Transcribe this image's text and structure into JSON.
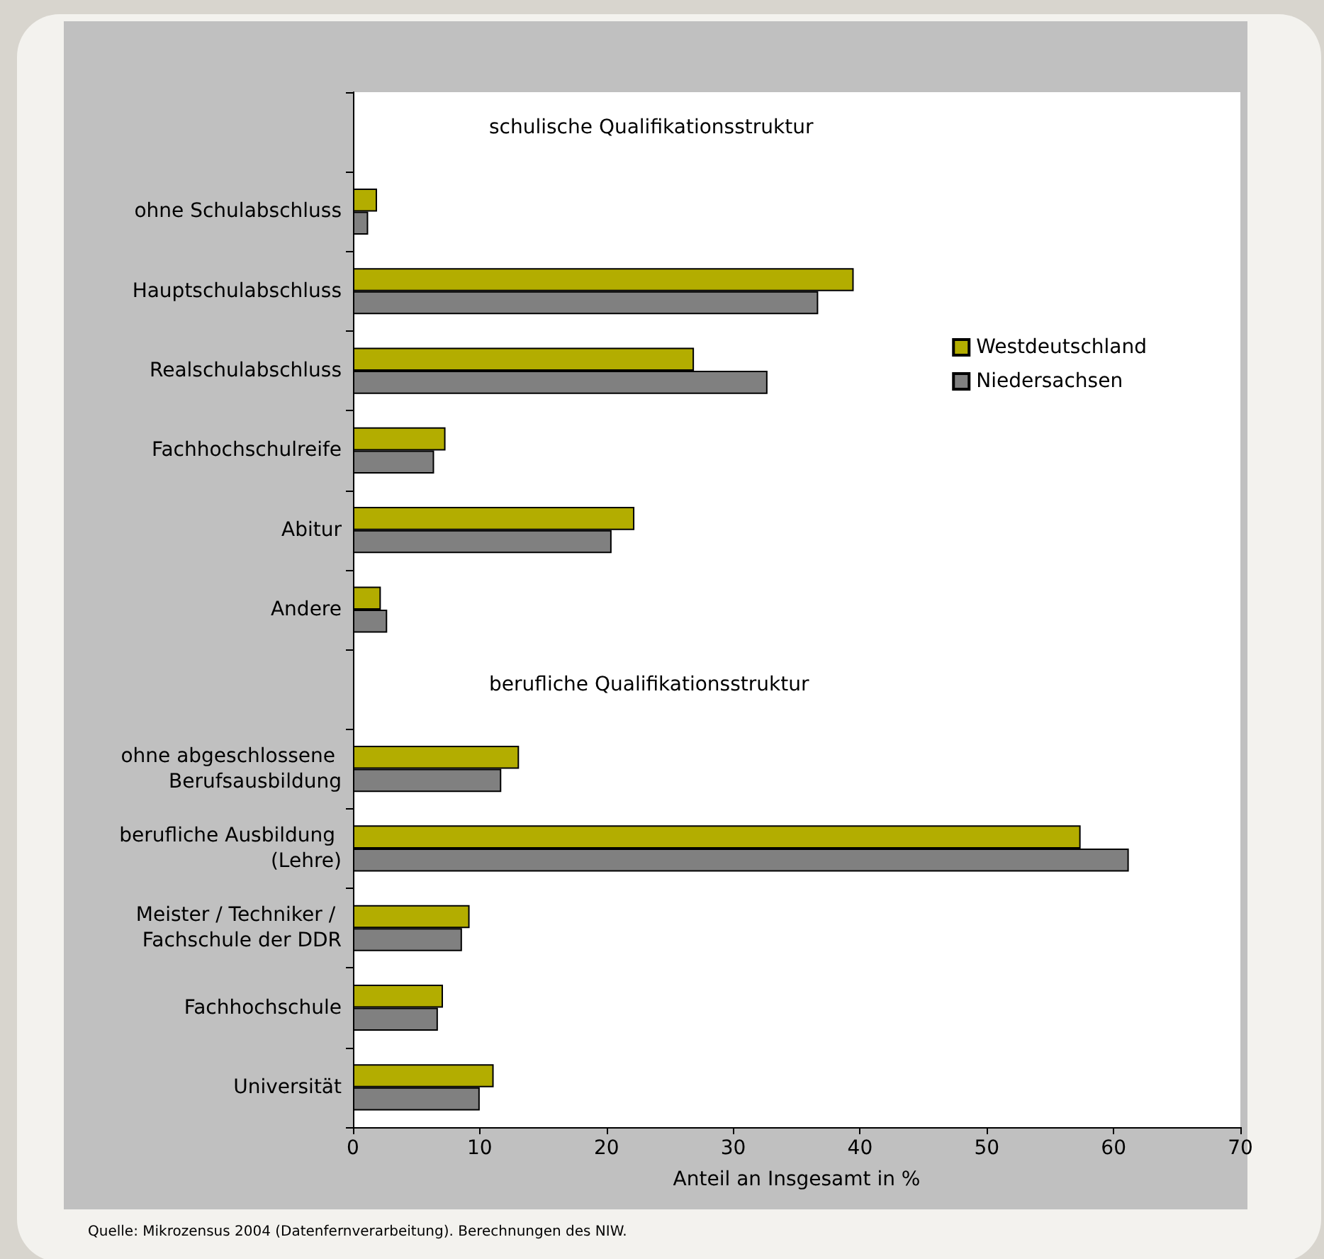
{
  "chart_data": {
    "type": "bar",
    "orientation": "horizontal",
    "categories": [
      null,
      "ohne Schulabschluss",
      "Hauptschulabschluss",
      "Realschulabschluss",
      "Fachhochschulreife",
      "Abitur",
      "Andere",
      null,
      "ohne abgeschlossene Berufsausbildung",
      "berufliche Ausbildung (Lehre)",
      "Meister / Techniker / Fachschule der DDR",
      "Fachhochschule",
      "Universität"
    ],
    "series": [
      {
        "name": "Westdeutschland",
        "color": "#b3ad00",
        "values": [
          null,
          1.9,
          39.5,
          26.9,
          7.3,
          22.2,
          2.2,
          null,
          13.1,
          57.4,
          9.2,
          7.1,
          11.1
        ]
      },
      {
        "name": "Niedersachsen",
        "color": "#808080",
        "values": [
          null,
          1.2,
          36.7,
          32.7,
          6.4,
          20.4,
          2.7,
          null,
          11.7,
          61.2,
          8.6,
          6.7,
          10.0
        ]
      }
    ],
    "xlabel": "Anteil an Insgesamt in %",
    "xlim": [
      0,
      70
    ],
    "xticks": [
      0,
      10,
      20,
      30,
      40,
      50,
      60,
      70
    ],
    "legend": "top right",
    "annotations": [
      "schulische Qualifikationsstruktur",
      "berufliche Qualifikationsstruktur",
      "Quelle: Mikrozensus 2004 (Datenfernverarbeitung). Berechnungen des NIW."
    ]
  }
}
